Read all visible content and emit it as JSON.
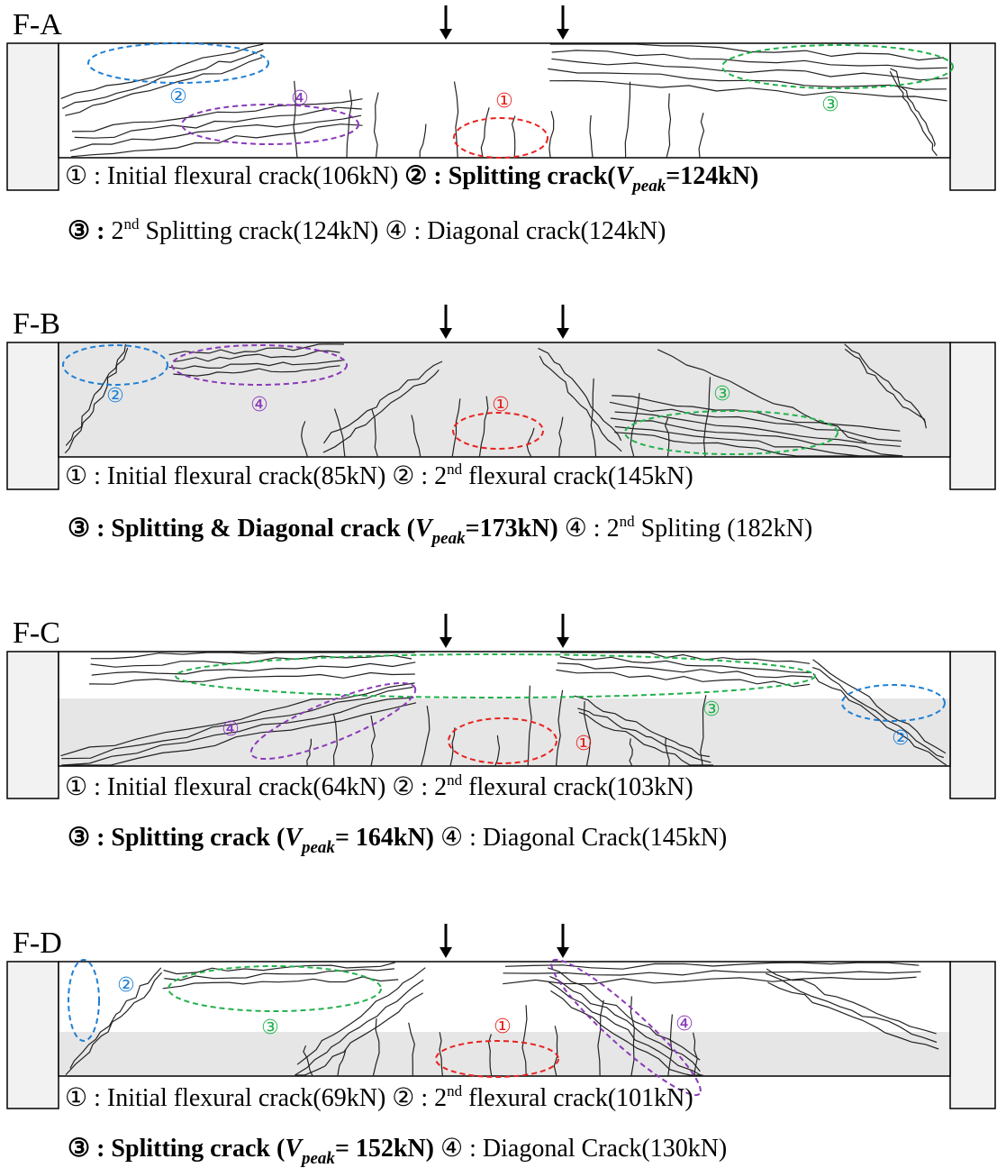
{
  "panels": [
    {
      "label": "F-A",
      "markers": [
        "①",
        "②",
        "③",
        "④"
      ],
      "captions": [
        [
          "① : Initial flexural crack(106kN) ",
          "② : Splitting crack(",
          "V",
          "peak",
          "=124kN)"
        ],
        [
          "③ :",
          " 2",
          "nd",
          " Splitting crack(124kN) ④ : Diagonal crack(124kN)"
        ]
      ]
    },
    {
      "label": "F-B",
      "markers": [
        "①",
        "②",
        "③",
        "④"
      ],
      "captions": [
        [
          "① : Initial flexural crack(85kN) ② : 2",
          "nd",
          " flexural crack(145kN)"
        ],
        [
          "③ : Splitting & Diagonal crack (",
          "V",
          "peak",
          "=173kN)",
          " ④ : 2",
          "nd",
          " Spliting (182kN)"
        ]
      ]
    },
    {
      "label": "F-C",
      "markers": [
        "①",
        "②",
        "③",
        "④"
      ],
      "captions": [
        [
          "① : Initial flexural crack(64kN) ② : 2",
          "nd",
          " flexural crack(103kN)"
        ],
        [
          "③ : Splitting crack (",
          "V",
          "peak",
          "= 164kN)",
          " ④ : Diagonal Crack(145kN)"
        ]
      ]
    },
    {
      "label": "F-D",
      "markers": [
        "①",
        "②",
        "③",
        "④"
      ],
      "captions": [
        [
          "① : Initial flexural crack(69kN) ② : 2",
          "nd",
          " flexural crack(101kN)"
        ],
        [
          "③ : Splitting crack (",
          "V",
          "peak",
          "= 152kN)",
          " ④ : Diagonal Crack(130kN)"
        ]
      ]
    }
  ]
}
